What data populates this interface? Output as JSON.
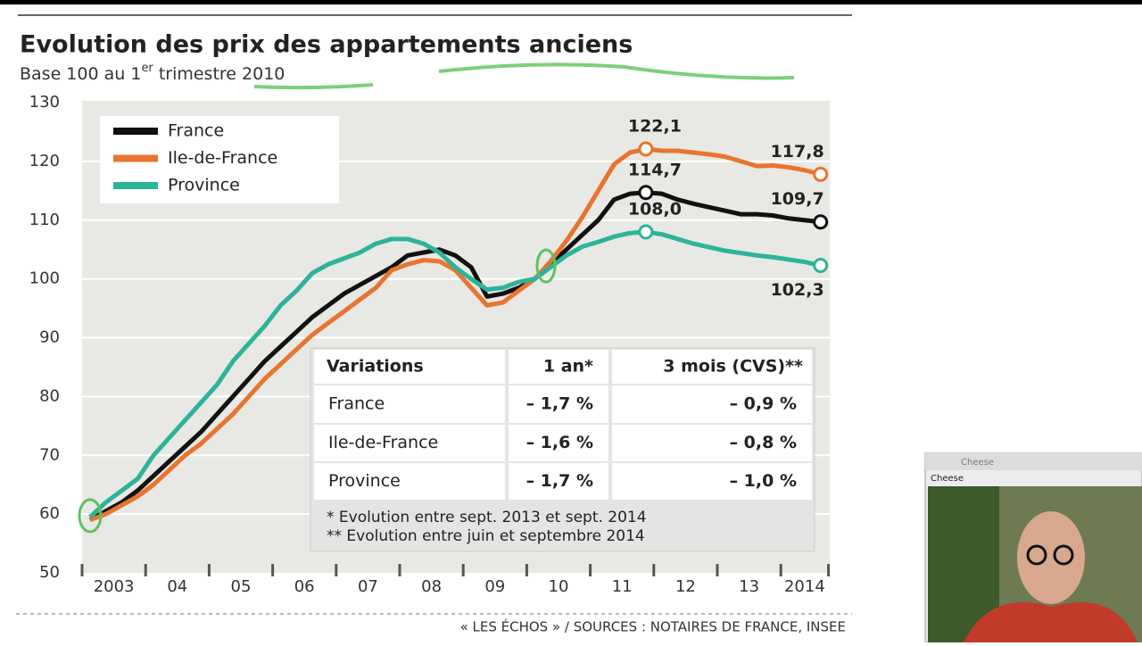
{
  "chart_data": {
    "type": "line",
    "title": "Evolution des prix des appartements anciens",
    "subtitle_parts": [
      "Base 100 au 1",
      "er",
      " trimestre 2010"
    ],
    "x": [
      2003.125,
      2003.375,
      2003.625,
      2003.875,
      2004.125,
      2004.375,
      2004.625,
      2004.875,
      2005.125,
      2005.375,
      2005.625,
      2005.875,
      2006.125,
      2006.375,
      2006.625,
      2006.875,
      2007.125,
      2007.375,
      2007.625,
      2007.875,
      2008.125,
      2008.375,
      2008.625,
      2008.875,
      2009.125,
      2009.375,
      2009.625,
      2009.875,
      2010.125,
      2010.375,
      2010.625,
      2010.875,
      2011.125,
      2011.375,
      2011.625,
      2011.875,
      2012.125,
      2012.375,
      2012.625,
      2012.875,
      2013.125,
      2013.375,
      2013.625,
      2013.875,
      2014.125,
      2014.375,
      2014.625
    ],
    "series": [
      {
        "name": "France",
        "color": "#111111",
        "values": [
          59,
          60.5,
          62,
          64,
          66.5,
          69,
          71.5,
          74,
          77,
          80,
          83,
          86,
          88.5,
          91,
          93.5,
          95.5,
          97.5,
          99,
          100.5,
          102,
          104,
          104.5,
          105,
          104,
          102,
          97,
          97.5,
          98.5,
          100,
          102.5,
          105,
          107.5,
          110,
          113.5,
          114.5,
          114.7,
          114.5,
          113.5,
          112.8,
          112.2,
          111.6,
          111,
          111,
          110.8,
          110.3,
          110,
          109.7
        ],
        "value_labels": [
          null,
          null,
          null,
          null,
          null,
          null,
          null,
          null,
          null,
          null,
          null,
          null,
          null,
          null,
          null,
          null,
          null,
          null,
          null,
          null,
          null,
          null,
          null,
          null,
          null,
          null,
          null,
          null,
          null,
          null,
          null,
          null,
          null,
          null,
          null,
          "114,7",
          null,
          null,
          null,
          null,
          null,
          null,
          null,
          null,
          null,
          null,
          "109,7"
        ]
      },
      {
        "name": "Ile-de-France",
        "color": "#e8742f",
        "values": [
          59,
          60,
          61.5,
          63,
          65,
          67.5,
          70,
          72,
          74.5,
          77,
          80,
          83,
          85.5,
          88,
          90.5,
          92.5,
          94.5,
          96.5,
          98.5,
          101.5,
          102.5,
          103.2,
          103,
          101.5,
          98.5,
          95.5,
          96,
          98,
          100,
          103,
          106.5,
          110.5,
          115,
          119.5,
          121.5,
          122.1,
          121.8,
          121.8,
          121.5,
          121.2,
          120.8,
          120,
          119.2,
          119.3,
          119,
          118.5,
          117.8
        ],
        "value_labels": [
          null,
          null,
          null,
          null,
          null,
          null,
          null,
          null,
          null,
          null,
          null,
          null,
          null,
          null,
          null,
          null,
          null,
          null,
          null,
          null,
          null,
          null,
          null,
          null,
          null,
          null,
          null,
          null,
          null,
          null,
          null,
          null,
          null,
          null,
          null,
          "122,1",
          null,
          null,
          null,
          null,
          null,
          null,
          null,
          null,
          null,
          null,
          "117,8"
        ]
      },
      {
        "name": "Province",
        "color": "#2db39a",
        "values": [
          59.5,
          62,
          64,
          66,
          70,
          73,
          76,
          79,
          82,
          86,
          89,
          92,
          95.5,
          98,
          101,
          102.5,
          103.5,
          104.5,
          106,
          106.8,
          106.8,
          106,
          104.5,
          102,
          100,
          98.2,
          98.5,
          99.5,
          100,
          102,
          104,
          105.5,
          106.3,
          107.2,
          107.8,
          108.0,
          107.6,
          106.8,
          106,
          105.4,
          104.8,
          104.4,
          104,
          103.7,
          103.3,
          102.9,
          102.3
        ],
        "value_labels": [
          null,
          null,
          null,
          null,
          null,
          null,
          null,
          null,
          null,
          null,
          null,
          null,
          null,
          null,
          null,
          null,
          null,
          null,
          null,
          null,
          null,
          null,
          null,
          null,
          null,
          null,
          null,
          null,
          null,
          null,
          null,
          null,
          null,
          null,
          null,
          "108,0",
          null,
          null,
          null,
          null,
          null,
          null,
          null,
          null,
          null,
          null,
          "102,3"
        ]
      }
    ],
    "xlim": [
      2003,
      2014.75
    ],
    "xticks": [
      {
        "value": 2003.5,
        "label": "2003"
      },
      {
        "value": 2004.5,
        "label": "04"
      },
      {
        "value": 2005.5,
        "label": "05"
      },
      {
        "value": 2006.5,
        "label": "06"
      },
      {
        "value": 2007.5,
        "label": "07"
      },
      {
        "value": 2008.5,
        "label": "08"
      },
      {
        "value": 2009.5,
        "label": "09"
      },
      {
        "value": 2010.5,
        "label": "10"
      },
      {
        "value": 2011.5,
        "label": "11"
      },
      {
        "value": 2012.5,
        "label": "12"
      },
      {
        "value": 2013.5,
        "label": "13"
      },
      {
        "value": 2014.375,
        "label": "2014"
      }
    ],
    "xtick_marks": [
      2003,
      2004,
      2005,
      2006,
      2007,
      2008,
      2009,
      2010,
      2011,
      2012,
      2013,
      2014,
      2014.75
    ],
    "ylim": [
      50,
      130
    ],
    "yticks": [
      50,
      60,
      70,
      80,
      90,
      100,
      110,
      120,
      130
    ],
    "grid": true,
    "table": {
      "header": [
        "Variations",
        "1 an*",
        "3 mois (CVS)**"
      ],
      "rows": [
        [
          "France",
          "– 1,7 %",
          "– 0,9 %"
        ],
        [
          "Ile-de-France",
          "– 1,6 %",
          "– 0,8 %"
        ],
        [
          "Province",
          "– 1,7 %",
          "– 1,0 %"
        ]
      ],
      "notes": [
        "* Evolution entre sept. 2013 et sept. 2014",
        "** Evolution entre juin et septembre 2014"
      ]
    },
    "source": "« LES ÉCHOS » / SOURCES : NOTAIRES DE FRANCE, INSEE"
  },
  "window": {
    "title": "Cheese",
    "label": "Cheese"
  }
}
